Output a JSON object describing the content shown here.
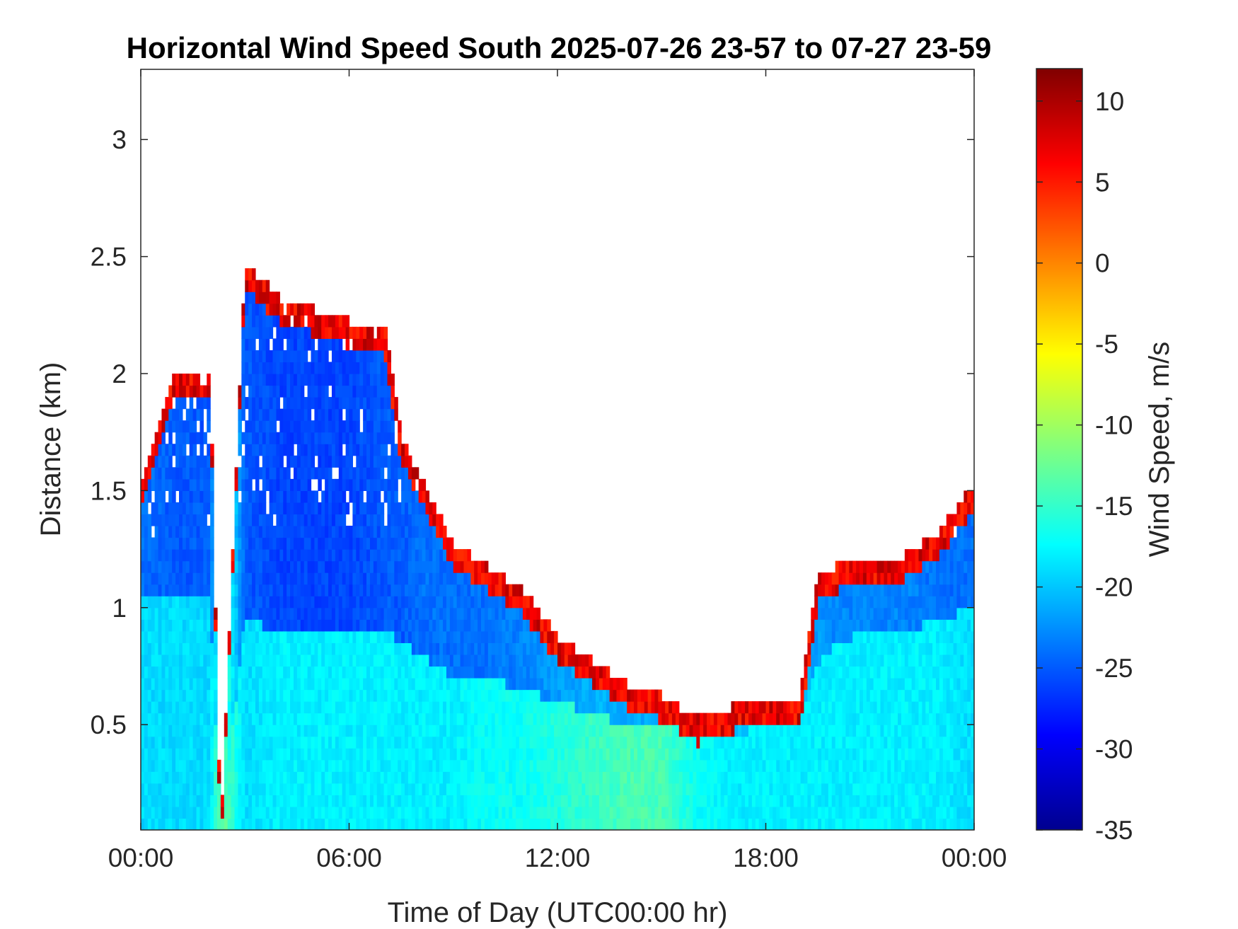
{
  "chart_data": {
    "type": "heatmap",
    "title": "Horizontal Wind Speed South 2025-07-26 23-57 to 07-27 23-59",
    "xlabel": "Time of Day (UTC00:00 hr)",
    "ylabel": "Distance (km)",
    "x_ticks": [
      "00:00",
      "06:00",
      "12:00",
      "18:00",
      "00:00"
    ],
    "x_range_hours": [
      0,
      24
    ],
    "y_ticks": [
      0.5,
      1,
      1.5,
      2,
      2.5,
      3
    ],
    "y_range_km": [
      0.05,
      3.3
    ],
    "colorbar": {
      "label": "Wind Speed, m/s",
      "ticks": [
        10,
        5,
        0,
        -5,
        -10,
        -15,
        -20,
        -25,
        -30,
        -35
      ],
      "range": [
        -35,
        12
      ],
      "colormap": "jet"
    },
    "colors": {
      "low": "#00008f",
      "high": "#800000",
      "axes": "#262626",
      "background": "#ffffff"
    },
    "profile": {
      "hours": [
        0,
        1,
        2,
        2.3,
        3,
        4,
        5,
        6,
        7,
        7.5,
        8,
        8.5,
        9,
        10,
        11,
        12,
        13,
        14,
        15,
        16,
        17,
        18,
        19,
        19.5,
        20,
        21,
        22,
        23,
        24
      ],
      "top_km": [
        1.5,
        2.0,
        2.0,
        0.0,
        2.45,
        2.3,
        2.25,
        2.2,
        2.2,
        1.7,
        1.55,
        1.4,
        1.25,
        1.15,
        1.05,
        0.85,
        0.75,
        0.65,
        0.6,
        0.5,
        0.55,
        0.6,
        0.6,
        1.1,
        1.15,
        1.2,
        1.2,
        1.3,
        1.5
      ],
      "transition_km": [
        1.05,
        1.05,
        1.05,
        0.0,
        0.95,
        0.9,
        0.9,
        0.9,
        0.9,
        0.85,
        0.8,
        0.75,
        0.7,
        0.7,
        0.65,
        0.6,
        0.55,
        0.5,
        0.5,
        0.45,
        0.45,
        0.5,
        0.5,
        0.75,
        0.85,
        0.9,
        0.9,
        0.95,
        1.0
      ],
      "upper_speed": [
        -24,
        -25,
        -25,
        -12,
        -25,
        -26,
        -26,
        -26,
        -25,
        -25,
        -24,
        -24,
        -24,
        -24,
        -23,
        -22,
        -21,
        -21,
        -21,
        -20,
        -20,
        -20,
        -20,
        -22,
        -23,
        -23,
        -23,
        -24,
        -24
      ],
      "lower_speed": [
        -19,
        -19,
        -19,
        -12,
        -19,
        -18,
        -18,
        -18,
        -18,
        -18,
        -18,
        -18,
        -18,
        -17,
        -17,
        -16,
        -15,
        -14,
        -14,
        -17,
        -18,
        -18,
        -18,
        -18,
        -18,
        -18,
        -18,
        -18,
        -19
      ]
    }
  }
}
